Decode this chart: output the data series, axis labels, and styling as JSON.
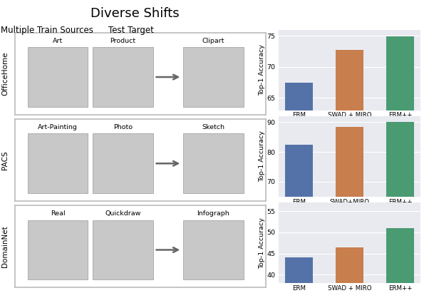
{
  "title": "Diverse Shifts",
  "subtitle_left": "Multiple Train Sources",
  "subtitle_right": "Test Target",
  "datasets": [
    {
      "name": "OfficeHome",
      "ylabel": "Top-1 Accuracy",
      "categories": [
        "ERM",
        "SWAD + MIRO",
        "ERM++"
      ],
      "values": [
        67.5,
        72.8,
        74.9
      ],
      "ylim": [
        63,
        76
      ],
      "yticks": [
        65,
        70,
        75
      ]
    },
    {
      "name": "PACS",
      "ylabel": "Top-1 Accuracy",
      "categories": [
        "ERM",
        "SWAD+MIRO",
        "ERM++"
      ],
      "values": [
        82.5,
        88.5,
        90.0
      ],
      "ylim": [
        65,
        92
      ],
      "yticks": [
        70,
        80,
        90
      ]
    },
    {
      "name": "DomainNet",
      "ylabel": "Top-1 Accuracy",
      "categories": [
        "ERM",
        "SWAD + MIRO",
        "ERM++"
      ],
      "values": [
        44.0,
        46.5,
        51.0
      ],
      "ylim": [
        38,
        57
      ],
      "yticks": [
        40,
        45,
        50,
        55
      ]
    }
  ],
  "bar_colors": [
    "#5572a8",
    "#c97e4e",
    "#4a9a72"
  ],
  "bg_color": "#e8eaf0",
  "row_labels": [
    "OfficeHome",
    "PACS",
    "DomainNet"
  ],
  "image_labels_row1": [
    "Art",
    "Product",
    "Clipart"
  ],
  "image_labels_row2": [
    "Art-Painting",
    "Photo",
    "Sketch"
  ],
  "image_labels_row3": [
    "Real",
    "Quickdraw",
    "Infograph"
  ]
}
